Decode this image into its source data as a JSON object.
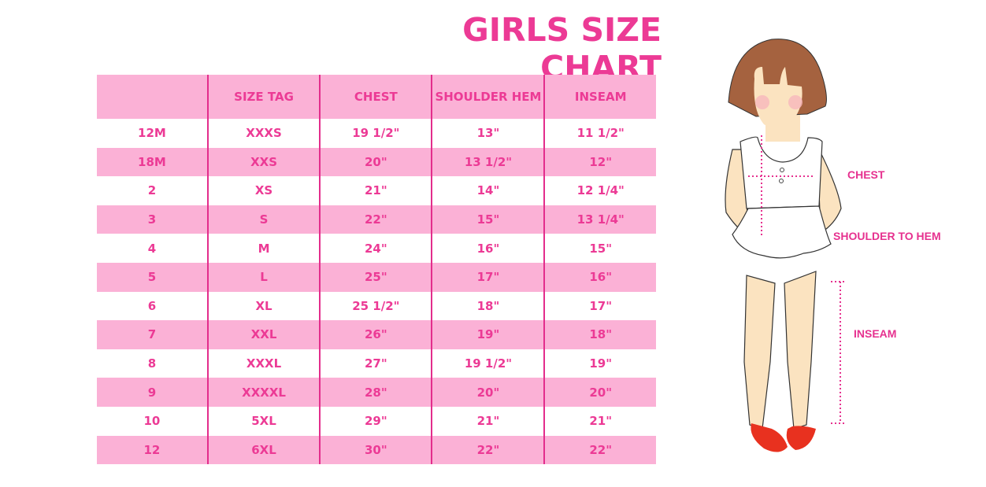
{
  "title": "GIRLS SIZE CHART",
  "colors": {
    "accent": "#ec3a95",
    "row_fill": "#fbb1d6",
    "hair": "#a5623f",
    "skin": "#fbe3c0",
    "shoes": "#e8311f"
  },
  "table": {
    "headers": [
      "",
      "SIZE TAG",
      "CHEST",
      "SHOULDER HEM",
      "INSEAM"
    ],
    "rows": [
      [
        "12M",
        "XXXS",
        "19 1/2\"",
        "13\"",
        "11 1/2\""
      ],
      [
        "18M",
        "XXS",
        "20\"",
        "13 1/2\"",
        "12\""
      ],
      [
        "2",
        "XS",
        "21\"",
        "14\"",
        "12 1/4\""
      ],
      [
        "3",
        "S",
        "22\"",
        "15\"",
        "13 1/4\""
      ],
      [
        "4",
        "M",
        "24\"",
        "16\"",
        "15\""
      ],
      [
        "5",
        "L",
        "25\"",
        "17\"",
        "16\""
      ],
      [
        "6",
        "XL",
        "25 1/2\"",
        "18\"",
        "17\""
      ],
      [
        "7",
        "XXL",
        "26\"",
        "19\"",
        "18\""
      ],
      [
        "8",
        "XXXL",
        "27\"",
        "19 1/2\"",
        "19\""
      ],
      [
        "9",
        "XXXXL",
        "28\"",
        "20\"",
        "20\""
      ],
      [
        "10",
        "5XL",
        "29\"",
        "21\"",
        "21\""
      ],
      [
        "12",
        "6XL",
        "30\"",
        "22\"",
        "22\""
      ]
    ]
  },
  "illustration": {
    "labels": {
      "chest": "CHEST",
      "shoulder_to_hem": "SHOULDER TO HEM",
      "inseam": "INSEAM"
    }
  }
}
